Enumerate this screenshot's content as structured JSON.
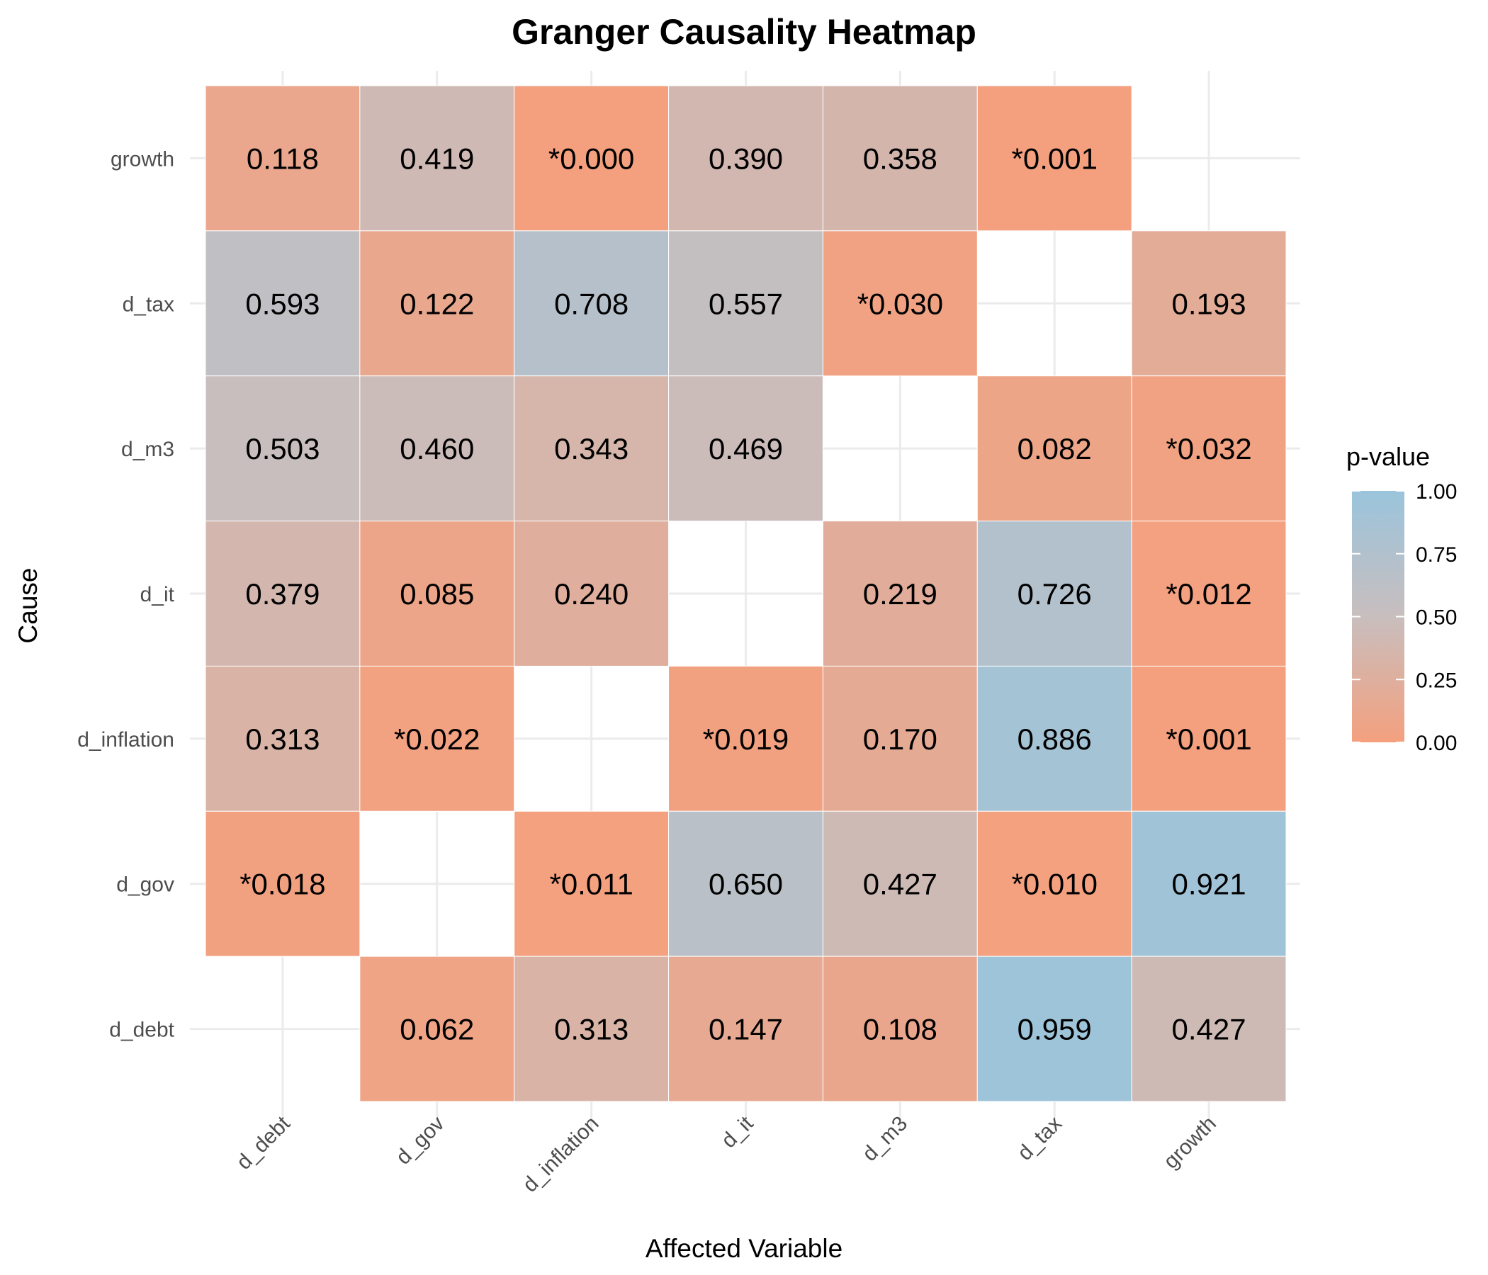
{
  "chart_data": {
    "type": "heatmap",
    "title": "Granger Causality Heatmap",
    "xlabel": "Affected Variable",
    "ylabel": "Cause",
    "x_categories": [
      "d_debt",
      "d_gov",
      "d_inflation",
      "d_it",
      "d_m3",
      "d_tax",
      "growth"
    ],
    "y_categories": [
      "d_debt",
      "d_gov",
      "d_inflation",
      "d_it",
      "d_m3",
      "d_tax",
      "growth"
    ],
    "cells": [
      {
        "cause": "growth",
        "affected": "d_debt",
        "value": 0.118,
        "label": "0.118"
      },
      {
        "cause": "growth",
        "affected": "d_gov",
        "value": 0.419,
        "label": "0.419"
      },
      {
        "cause": "growth",
        "affected": "d_inflation",
        "value": 0.0,
        "label": "*0.000"
      },
      {
        "cause": "growth",
        "affected": "d_it",
        "value": 0.39,
        "label": "0.390"
      },
      {
        "cause": "growth",
        "affected": "d_m3",
        "value": 0.358,
        "label": "0.358"
      },
      {
        "cause": "growth",
        "affected": "d_tax",
        "value": 0.001,
        "label": "*0.001"
      },
      {
        "cause": "d_tax",
        "affected": "d_debt",
        "value": 0.593,
        "label": "0.593"
      },
      {
        "cause": "d_tax",
        "affected": "d_gov",
        "value": 0.122,
        "label": "0.122"
      },
      {
        "cause": "d_tax",
        "affected": "d_inflation",
        "value": 0.708,
        "label": "0.708"
      },
      {
        "cause": "d_tax",
        "affected": "d_it",
        "value": 0.557,
        "label": "0.557"
      },
      {
        "cause": "d_tax",
        "affected": "d_m3",
        "value": 0.03,
        "label": "*0.030"
      },
      {
        "cause": "d_tax",
        "affected": "growth",
        "value": 0.193,
        "label": "0.193"
      },
      {
        "cause": "d_m3",
        "affected": "d_debt",
        "value": 0.503,
        "label": "0.503"
      },
      {
        "cause": "d_m3",
        "affected": "d_gov",
        "value": 0.46,
        "label": "0.460"
      },
      {
        "cause": "d_m3",
        "affected": "d_inflation",
        "value": 0.343,
        "label": "0.343"
      },
      {
        "cause": "d_m3",
        "affected": "d_it",
        "value": 0.469,
        "label": "0.469"
      },
      {
        "cause": "d_m3",
        "affected": "d_tax",
        "value": 0.082,
        "label": "0.082"
      },
      {
        "cause": "d_m3",
        "affected": "growth",
        "value": 0.032,
        "label": "*0.032"
      },
      {
        "cause": "d_it",
        "affected": "d_debt",
        "value": 0.379,
        "label": "0.379"
      },
      {
        "cause": "d_it",
        "affected": "d_gov",
        "value": 0.085,
        "label": "0.085"
      },
      {
        "cause": "d_it",
        "affected": "d_inflation",
        "value": 0.24,
        "label": "0.240"
      },
      {
        "cause": "d_it",
        "affected": "d_m3",
        "value": 0.219,
        "label": "0.219"
      },
      {
        "cause": "d_it",
        "affected": "d_tax",
        "value": 0.726,
        "label": "0.726"
      },
      {
        "cause": "d_it",
        "affected": "growth",
        "value": 0.012,
        "label": "*0.012"
      },
      {
        "cause": "d_inflation",
        "affected": "d_debt",
        "value": 0.313,
        "label": "0.313"
      },
      {
        "cause": "d_inflation",
        "affected": "d_gov",
        "value": 0.022,
        "label": "*0.022"
      },
      {
        "cause": "d_inflation",
        "affected": "d_it",
        "value": 0.019,
        "label": "*0.019"
      },
      {
        "cause": "d_inflation",
        "affected": "d_m3",
        "value": 0.17,
        "label": "0.170"
      },
      {
        "cause": "d_inflation",
        "affected": "d_tax",
        "value": 0.886,
        "label": "0.886"
      },
      {
        "cause": "d_inflation",
        "affected": "growth",
        "value": 0.001,
        "label": "*0.001"
      },
      {
        "cause": "d_gov",
        "affected": "d_debt",
        "value": 0.018,
        "label": "*0.018"
      },
      {
        "cause": "d_gov",
        "affected": "d_inflation",
        "value": 0.011,
        "label": "*0.011"
      },
      {
        "cause": "d_gov",
        "affected": "d_it",
        "value": 0.65,
        "label": "0.650"
      },
      {
        "cause": "d_gov",
        "affected": "d_m3",
        "value": 0.427,
        "label": "0.427"
      },
      {
        "cause": "d_gov",
        "affected": "d_tax",
        "value": 0.01,
        "label": "*0.010"
      },
      {
        "cause": "d_gov",
        "affected": "growth",
        "value": 0.921,
        "label": "0.921"
      },
      {
        "cause": "d_debt",
        "affected": "d_gov",
        "value": 0.062,
        "label": "0.062"
      },
      {
        "cause": "d_debt",
        "affected": "d_inflation",
        "value": 0.313,
        "label": "0.313"
      },
      {
        "cause": "d_debt",
        "affected": "d_it",
        "value": 0.147,
        "label": "0.147"
      },
      {
        "cause": "d_debt",
        "affected": "d_m3",
        "value": 0.108,
        "label": "0.108"
      },
      {
        "cause": "d_debt",
        "affected": "d_tax",
        "value": 0.959,
        "label": "0.959"
      },
      {
        "cause": "d_debt",
        "affected": "growth",
        "value": 0.427,
        "label": "0.427"
      }
    ],
    "legend": {
      "title": "p-value",
      "placement": "right",
      "range": [
        0,
        1
      ],
      "ticks": [
        1.0,
        0.75,
        0.5,
        0.25,
        0.0
      ],
      "tick_labels": [
        "1.00",
        "0.75",
        "0.50",
        "0.25",
        "0.00"
      ],
      "low_color": "#F4A07E",
      "mid_color": "#C8BEBE",
      "high_color": "#9AC4DC"
    },
    "grid": true
  }
}
